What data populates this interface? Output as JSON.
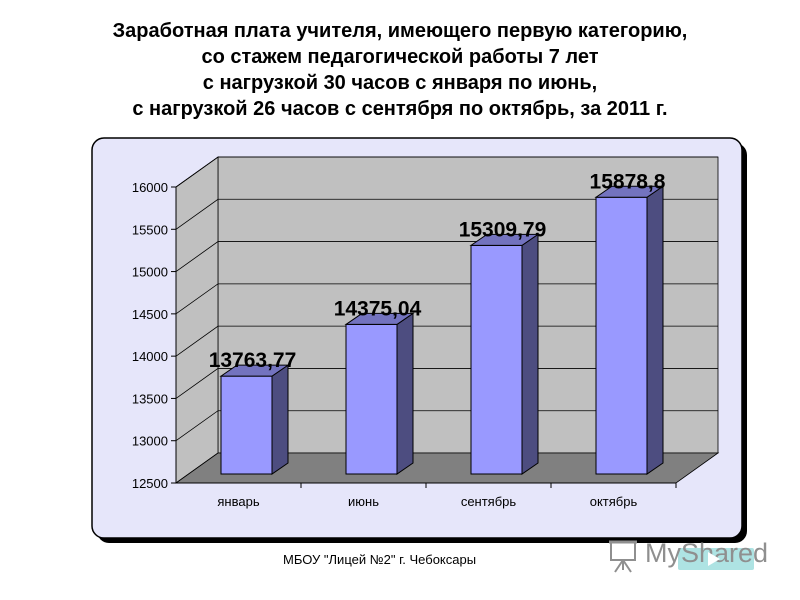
{
  "title_lines": [
    "Заработная плата учителя, имеющего первую категорию,",
    "со стажем педагогической работы 7 лет",
    "с нагрузкой 30 часов с января по июнь,",
    "с нагрузкой 26 часов с сентября по октябрь, за 2011 г."
  ],
  "footer": "МБОУ \"Лицей №2\" г. Чебоксары",
  "watermark": {
    "text": "MyShared",
    "icon": "presentation-board-icon"
  },
  "colors": {
    "panel_bg": "#e6e6fa",
    "wall": "#c0c0c0",
    "floor": "#808080",
    "bar_front": "#9999ff",
    "bar_side": "#4d4d80",
    "bar_top": "#7373bf"
  },
  "chart_data": {
    "type": "bar",
    "categories": [
      "январь",
      "июнь",
      "сентябрь",
      "октябрь"
    ],
    "values": [
      13763.77,
      14375.04,
      15309.79,
      15878.8
    ],
    "value_labels": [
      "13763,77",
      "14375,04",
      "15309,79",
      "15878,8"
    ],
    "yticks": [
      "16000",
      "15500",
      "15000",
      "14500",
      "14000",
      "13500",
      "13000",
      "12500"
    ],
    "ylim": [
      12500,
      16000
    ],
    "grid": true,
    "legend": "none"
  }
}
